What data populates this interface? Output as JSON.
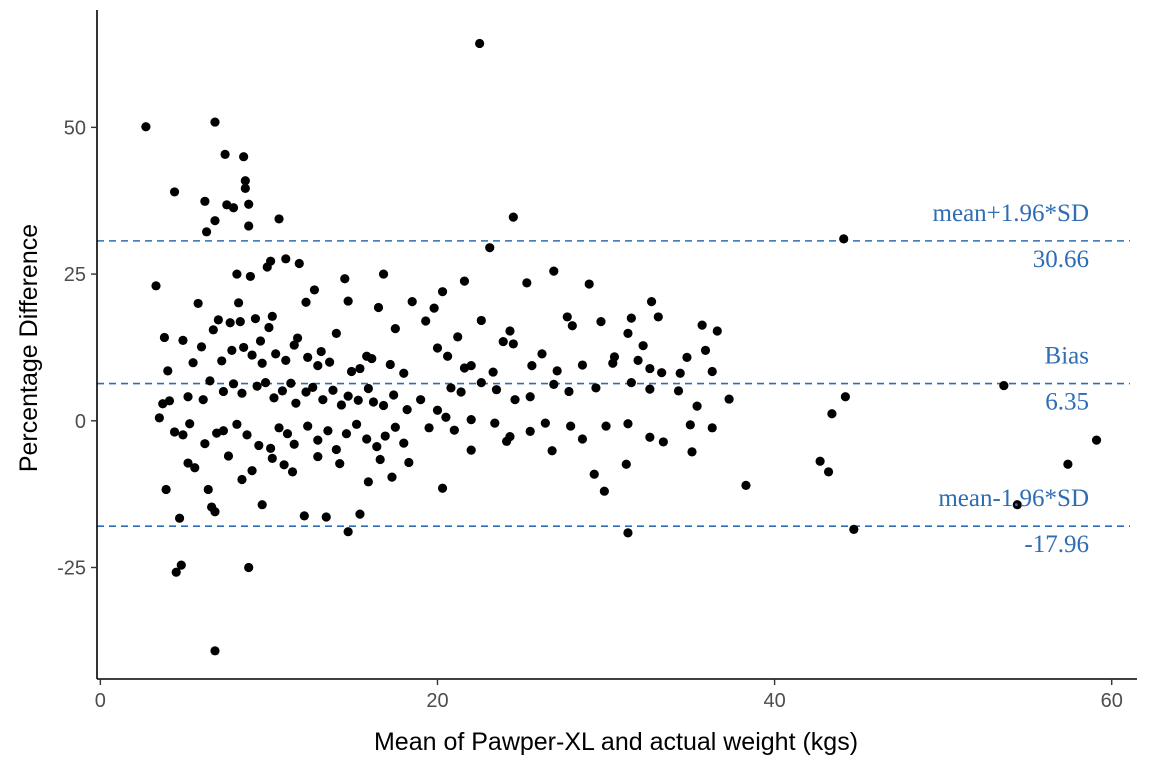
{
  "chart_data": {
    "type": "scatter",
    "xlabel": "Mean of Pawper-XL and actual weight (kgs)",
    "ylabel": "Percentage Difference",
    "xlim": [
      -0.2,
      61.5
    ],
    "ylim": [
      -44,
      70
    ],
    "x_ticks": [
      0,
      20,
      40,
      60
    ],
    "y_ticks": [
      -25,
      0,
      25,
      50
    ],
    "x_tick_labels": [
      "0",
      "20",
      "40",
      "60"
    ],
    "y_tick_labels": [
      "-25",
      "0",
      "25",
      "50"
    ],
    "grid": false,
    "point_color": "#000000",
    "reference_lines": [
      {
        "key": "upper",
        "label": "mean+1.96*SD",
        "value_text": "30.66",
        "y": 30.66,
        "color": "#2E6DB4"
      },
      {
        "key": "bias",
        "label": "Bias",
        "value_text": "6.35",
        "y": 6.35,
        "color": "#2E6DB4"
      },
      {
        "key": "lower",
        "label": "mean-1.96*SD",
        "value_text": "-17.96",
        "y": -17.96,
        "color": "#2E6DB4"
      }
    ],
    "points": [
      [
        2.7,
        50.1
      ],
      [
        6.8,
        50.9
      ],
      [
        7.4,
        45.4
      ],
      [
        8.5,
        45.0
      ],
      [
        4.4,
        39.0
      ],
      [
        8.6,
        40.9
      ],
      [
        8.6,
        39.6
      ],
      [
        6.2,
        37.4
      ],
      [
        7.5,
        36.8
      ],
      [
        7.9,
        36.3
      ],
      [
        8.8,
        36.9
      ],
      [
        6.8,
        34.1
      ],
      [
        10.6,
        34.4
      ],
      [
        24.5,
        34.7
      ],
      [
        6.3,
        32.2
      ],
      [
        8.8,
        33.2
      ],
      [
        44.1,
        31.0
      ],
      [
        23.1,
        29.5
      ],
      [
        3.3,
        23.0
      ],
      [
        8.1,
        25.0
      ],
      [
        8.9,
        24.6
      ],
      [
        9.9,
        26.2
      ],
      [
        10.1,
        27.2
      ],
      [
        11.0,
        27.6
      ],
      [
        11.8,
        26.8
      ],
      [
        14.5,
        24.2
      ],
      [
        16.8,
        25.0
      ],
      [
        19.8,
        19.2
      ],
      [
        21.6,
        23.8
      ],
      [
        25.3,
        23.5
      ],
      [
        26.9,
        25.5
      ],
      [
        29.0,
        23.3
      ],
      [
        20.3,
        22.0
      ],
      [
        5.8,
        20.0
      ],
      [
        8.2,
        20.1
      ],
      [
        9.2,
        17.4
      ],
      [
        12.2,
        20.2
      ],
      [
        12.7,
        22.3
      ],
      [
        14.7,
        20.4
      ],
      [
        18.5,
        20.3
      ],
      [
        31.5,
        17.5
      ],
      [
        32.7,
        20.3
      ],
      [
        33.1,
        17.7
      ],
      [
        36.6,
        15.3
      ],
      [
        35.7,
        16.3
      ],
      [
        3.8,
        14.2
      ],
      [
        4.9,
        13.7
      ],
      [
        6.7,
        15.5
      ],
      [
        7.0,
        17.2
      ],
      [
        7.7,
        16.7
      ],
      [
        8.3,
        16.9
      ],
      [
        9.5,
        13.6
      ],
      [
        10.0,
        15.9
      ],
      [
        10.2,
        17.8
      ],
      [
        11.7,
        14.1
      ],
      [
        13.1,
        11.8
      ],
      [
        14.0,
        14.9
      ],
      [
        15.8,
        11.0
      ],
      [
        16.5,
        19.3
      ],
      [
        17.5,
        15.7
      ],
      [
        19.3,
        17.0
      ],
      [
        21.2,
        14.3
      ],
      [
        22.6,
        17.1
      ],
      [
        23.9,
        13.5
      ],
      [
        24.3,
        15.3
      ],
      [
        24.5,
        13.1
      ],
      [
        26.2,
        11.4
      ],
      [
        27.7,
        17.7
      ],
      [
        28.0,
        16.2
      ],
      [
        29.7,
        16.9
      ],
      [
        30.5,
        10.9
      ],
      [
        31.3,
        14.9
      ],
      [
        32.2,
        12.8
      ],
      [
        34.8,
        10.8
      ],
      [
        35.9,
        12.0
      ],
      [
        4.0,
        8.5
      ],
      [
        5.5,
        9.9
      ],
      [
        6.0,
        12.6
      ],
      [
        7.2,
        10.2
      ],
      [
        7.8,
        12.0
      ],
      [
        8.5,
        12.5
      ],
      [
        9.0,
        11.2
      ],
      [
        9.6,
        9.8
      ],
      [
        10.4,
        11.4
      ],
      [
        11.0,
        10.3
      ],
      [
        11.5,
        12.9
      ],
      [
        12.3,
        10.8
      ],
      [
        12.9,
        9.4
      ],
      [
        13.6,
        10.0
      ],
      [
        14.9,
        8.4
      ],
      [
        15.4,
        8.9
      ],
      [
        16.1,
        10.6
      ],
      [
        17.2,
        9.6
      ],
      [
        18.0,
        8.1
      ],
      [
        20.0,
        12.4
      ],
      [
        20.6,
        11.0
      ],
      [
        21.6,
        9.0
      ],
      [
        22.0,
        9.4
      ],
      [
        23.3,
        8.3
      ],
      [
        25.6,
        9.4
      ],
      [
        27.1,
        8.5
      ],
      [
        28.6,
        9.5
      ],
      [
        30.4,
        9.8
      ],
      [
        31.9,
        10.3
      ],
      [
        32.6,
        8.9
      ],
      [
        33.3,
        8.2
      ],
      [
        34.4,
        8.1
      ],
      [
        36.3,
        8.4
      ],
      [
        3.7,
        2.9
      ],
      [
        4.1,
        3.4
      ],
      [
        5.2,
        4.1
      ],
      [
        6.1,
        3.6
      ],
      [
        6.5,
        6.8
      ],
      [
        7.3,
        5.0
      ],
      [
        7.9,
        6.3
      ],
      [
        8.4,
        4.7
      ],
      [
        9.3,
        5.9
      ],
      [
        9.8,
        6.5
      ],
      [
        10.3,
        3.9
      ],
      [
        10.8,
        5.1
      ],
      [
        11.3,
        6.4
      ],
      [
        11.6,
        3.0
      ],
      [
        12.2,
        4.9
      ],
      [
        12.6,
        5.7
      ],
      [
        13.2,
        3.6
      ],
      [
        13.8,
        5.2
      ],
      [
        14.3,
        2.7
      ],
      [
        14.7,
        4.2
      ],
      [
        15.3,
        3.5
      ],
      [
        15.9,
        5.5
      ],
      [
        16.2,
        3.2
      ],
      [
        16.8,
        2.6
      ],
      [
        17.4,
        4.4
      ],
      [
        18.2,
        1.9
      ],
      [
        19.0,
        3.6
      ],
      [
        20.0,
        1.8
      ],
      [
        20.8,
        5.6
      ],
      [
        21.4,
        4.9
      ],
      [
        22.6,
        6.5
      ],
      [
        23.5,
        5.3
      ],
      [
        24.6,
        3.6
      ],
      [
        25.5,
        4.1
      ],
      [
        26.9,
        6.2
      ],
      [
        27.8,
        5.0
      ],
      [
        29.4,
        5.6
      ],
      [
        31.5,
        6.5
      ],
      [
        32.6,
        5.4
      ],
      [
        34.3,
        5.1
      ],
      [
        35.4,
        2.5
      ],
      [
        37.3,
        3.7
      ],
      [
        44.2,
        4.1
      ],
      [
        53.6,
        6.0
      ],
      [
        3.5,
        0.5
      ],
      [
        4.4,
        -1.9
      ],
      [
        4.9,
        -2.4
      ],
      [
        5.3,
        -0.5
      ],
      [
        6.2,
        -3.9
      ],
      [
        6.9,
        -2.1
      ],
      [
        7.3,
        -1.7
      ],
      [
        8.1,
        -0.6
      ],
      [
        8.7,
        -2.4
      ],
      [
        9.4,
        -4.2
      ],
      [
        10.1,
        -4.7
      ],
      [
        10.6,
        -1.2
      ],
      [
        11.1,
        -2.2
      ],
      [
        11.5,
        -4.0
      ],
      [
        12.3,
        -0.9
      ],
      [
        12.9,
        -3.3
      ],
      [
        13.5,
        -1.7
      ],
      [
        14.0,
        -4.9
      ],
      [
        14.6,
        -2.2
      ],
      [
        15.2,
        -0.6
      ],
      [
        15.8,
        -3.1
      ],
      [
        16.4,
        -4.4
      ],
      [
        16.9,
        -2.6
      ],
      [
        17.5,
        -1.1
      ],
      [
        18.0,
        -3.8
      ],
      [
        19.5,
        -1.2
      ],
      [
        20.5,
        0.6
      ],
      [
        21.0,
        -1.6
      ],
      [
        22.0,
        0.2
      ],
      [
        23.4,
        -0.4
      ],
      [
        24.3,
        -2.7
      ],
      [
        25.5,
        -1.8
      ],
      [
        26.4,
        -0.4
      ],
      [
        27.9,
        -0.9
      ],
      [
        28.6,
        -3.1
      ],
      [
        30.0,
        -0.9
      ],
      [
        31.3,
        -0.5
      ],
      [
        32.6,
        -2.8
      ],
      [
        33.4,
        -3.6
      ],
      [
        35.0,
        -0.7
      ],
      [
        36.3,
        -1.2
      ],
      [
        43.4,
        1.2
      ],
      [
        59.1,
        -3.3
      ],
      [
        3.9,
        -11.7
      ],
      [
        4.7,
        -16.6
      ],
      [
        5.2,
        -7.2
      ],
      [
        5.6,
        -8.0
      ],
      [
        6.4,
        -11.7
      ],
      [
        6.6,
        -14.7
      ],
      [
        6.8,
        -15.5
      ],
      [
        7.6,
        -6.0
      ],
      [
        8.4,
        -10.0
      ],
      [
        9.0,
        -8.5
      ],
      [
        9.6,
        -14.3
      ],
      [
        10.2,
        -6.4
      ],
      [
        10.9,
        -7.5
      ],
      [
        11.4,
        -8.7
      ],
      [
        12.1,
        -16.2
      ],
      [
        12.9,
        -6.1
      ],
      [
        13.4,
        -16.4
      ],
      [
        14.2,
        -7.3
      ],
      [
        14.7,
        -18.9
      ],
      [
        15.4,
        -15.9
      ],
      [
        15.9,
        -10.4
      ],
      [
        16.6,
        -6.6
      ],
      [
        17.3,
        -9.6
      ],
      [
        18.3,
        -7.1
      ],
      [
        20.3,
        -11.5
      ],
      [
        22.0,
        -5.0
      ],
      [
        24.1,
        -3.5
      ],
      [
        26.8,
        -5.1
      ],
      [
        29.3,
        -9.1
      ],
      [
        29.9,
        -12.0
      ],
      [
        31.2,
        -7.4
      ],
      [
        31.3,
        -19.1
      ],
      [
        35.1,
        -5.3
      ],
      [
        38.3,
        -11.0
      ],
      [
        42.7,
        -6.9
      ],
      [
        43.2,
        -8.7
      ],
      [
        44.7,
        -18.5
      ],
      [
        54.4,
        -14.3
      ],
      [
        57.4,
        -7.4
      ],
      [
        4.5,
        -25.8
      ],
      [
        4.8,
        -24.6
      ],
      [
        8.8,
        -25.0
      ],
      [
        6.8,
        -39.2
      ],
      [
        22.5,
        64.3
      ]
    ]
  }
}
